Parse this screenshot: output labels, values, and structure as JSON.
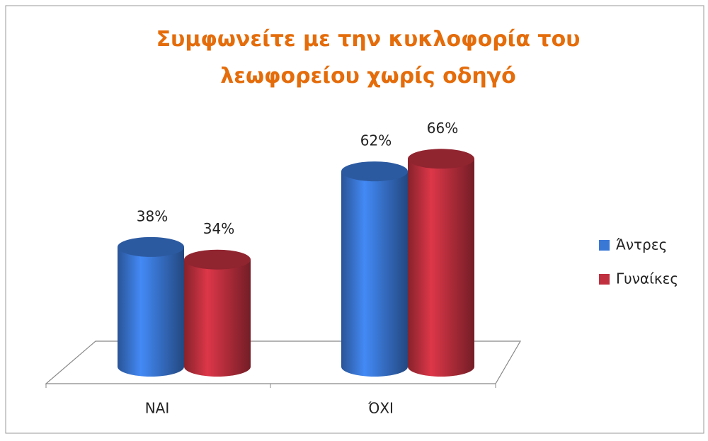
{
  "chart_data": {
    "type": "bar3d",
    "title": "Συμφωνείτε με την κυκλοφορία του λεωφορείου χωρίς οδηγό",
    "categories": [
      "ΝΑΙ",
      "ΌΧΙ"
    ],
    "series": [
      {
        "name": "Άντρες",
        "color": "#3a78d6",
        "values": [
          38,
          62
        ],
        "value_labels": [
          "38%",
          "62%"
        ]
      },
      {
        "name": "Γυναίκες",
        "color": "#c0303f",
        "values": [
          34,
          66
        ],
        "value_labels": [
          "34%",
          "66%"
        ]
      }
    ],
    "legend": "right"
  }
}
